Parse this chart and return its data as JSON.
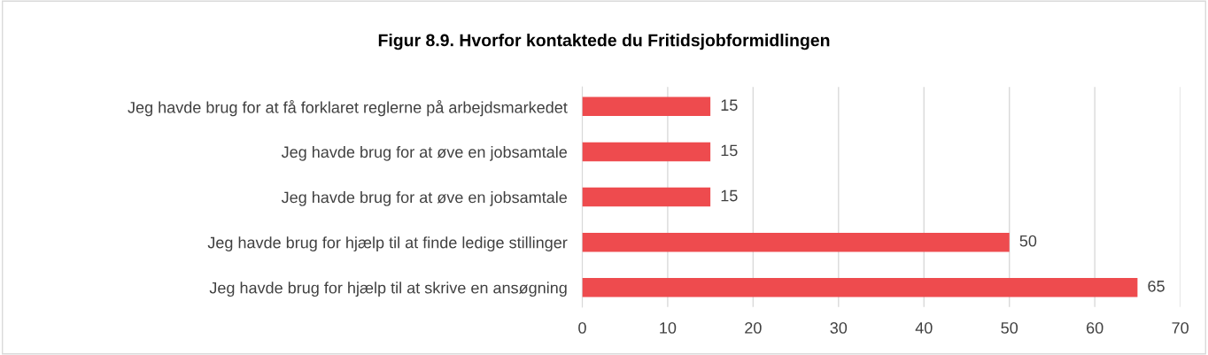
{
  "chart_data": {
    "type": "bar",
    "orientation": "horizontal",
    "title": "Figur 8.9. Hvorfor kontaktede du Fritidsjobformidlingen",
    "categories": [
      "Jeg havde brug for at få forklaret reglerne på arbejdsmarkedet",
      "Jeg havde brug for at øve en jobsamtale",
      "Jeg havde brug for at øve en jobsamtale",
      "Jeg havde brug for hjælp til at finde ledige stillinger",
      "Jeg havde brug for hjælp til at skrive en ansøgning"
    ],
    "values": [
      15,
      15,
      15,
      50,
      65
    ],
    "color": "#ee4b4e",
    "xlim": [
      0,
      70
    ],
    "xticks": [
      0,
      10,
      20,
      30,
      40,
      50,
      60,
      70
    ],
    "grid": "x",
    "data_labels": true
  }
}
